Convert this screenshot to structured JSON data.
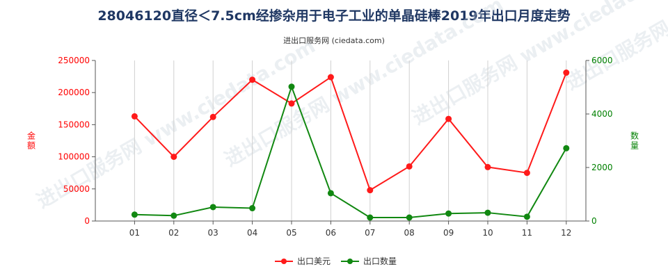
{
  "chart_data": {
    "type": "line",
    "title": "28046120直径＜7.5cm经掺杂用于电子工业的单晶硅棒2019年出口月度走势",
    "subtitle": "进出口服务网 (ciedata.com)",
    "watermark": "进出口服务网 www.ciedata.com",
    "categories": [
      "01",
      "02",
      "03",
      "04",
      "05",
      "06",
      "07",
      "08",
      "09",
      "10",
      "11",
      "12"
    ],
    "y_left": {
      "label": "金额",
      "range": [
        0,
        250000
      ],
      "ticks": [
        0,
        50000,
        100000,
        150000,
        200000,
        250000
      ],
      "color": "#ff0000"
    },
    "y_right": {
      "label": "数量",
      "range": [
        0,
        6000
      ],
      "ticks": [
        0,
        2000,
        4000,
        6000
      ],
      "color": "#008000"
    },
    "grid": "vertical",
    "legend_position": "bottom",
    "series": [
      {
        "name": "出口美元",
        "axis": "left",
        "color": "#ff1a1a",
        "values": [
          163000,
          100000,
          162000,
          220000,
          183000,
          224000,
          48000,
          85000,
          159000,
          84000,
          75000,
          231000
        ]
      },
      {
        "name": "出口数量",
        "axis": "right",
        "color": "#118811",
        "values": [
          240,
          200,
          520,
          480,
          5020,
          1040,
          130,
          130,
          280,
          310,
          160,
          2720
        ]
      }
    ]
  }
}
